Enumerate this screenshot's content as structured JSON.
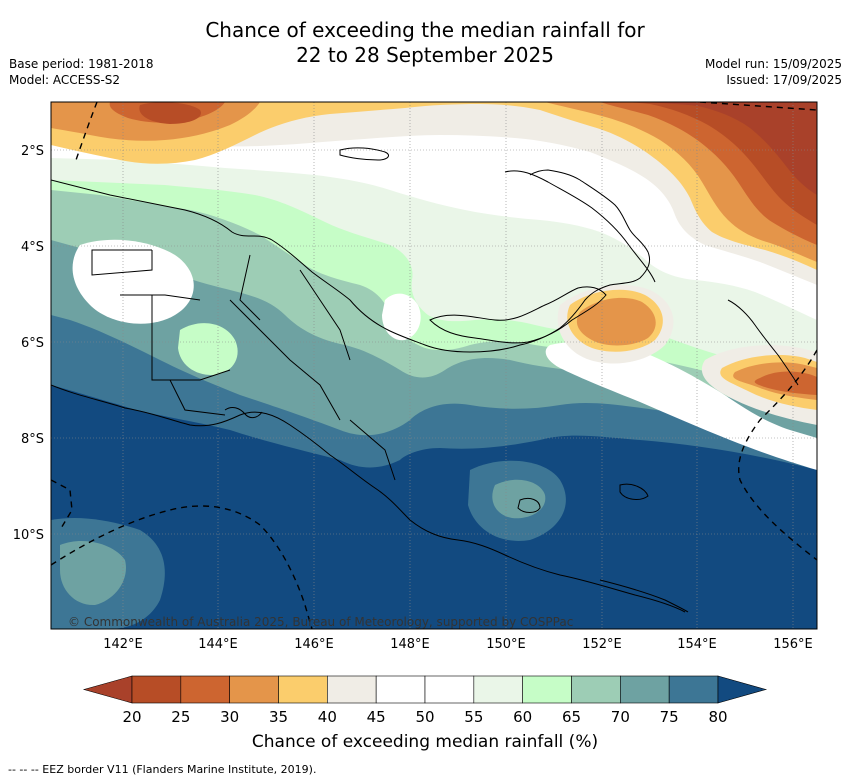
{
  "title_line1": "Chance of exceeding the median rainfall for",
  "title_line2": "22 to 28 September 2025",
  "base_period": "Base period: 1981-2018",
  "model": "Model: ACCESS-S2",
  "model_run": "Model run: 15/09/2025",
  "issued": "Issued: 17/09/2025",
  "copyright": "© Commonwealth of Australia 2025, Bureau of Meteorology, supported by COSPPac",
  "lat_labels": [
    "2°S",
    "4°S",
    "6°S",
    "8°S",
    "10°S"
  ],
  "lon_labels": [
    "142°E",
    "144°E",
    "146°E",
    "148°E",
    "150°E",
    "152°E",
    "154°E",
    "156°E"
  ],
  "colorbar": {
    "title": "Chance of exceeding median rainfall (%)",
    "labels": [
      "20",
      "25",
      "30",
      "35",
      "40",
      "45",
      "50",
      "55",
      "60",
      "65",
      "70",
      "75",
      "80"
    ],
    "colors": [
      "#a9412a",
      "#b74d26",
      "#cd6530",
      "#e4954a",
      "#fbcd6c",
      "#f0ede6",
      "#ffffff",
      "#ffffff",
      "#eaf6e8",
      "#c6fdc7",
      "#9dcdb5",
      "#6ea2a2",
      "#3d7695",
      "#124a80"
    ]
  },
  "footer": "--  --  -- EEZ border V11 (Flanders Marine Institute, 2019)."
}
